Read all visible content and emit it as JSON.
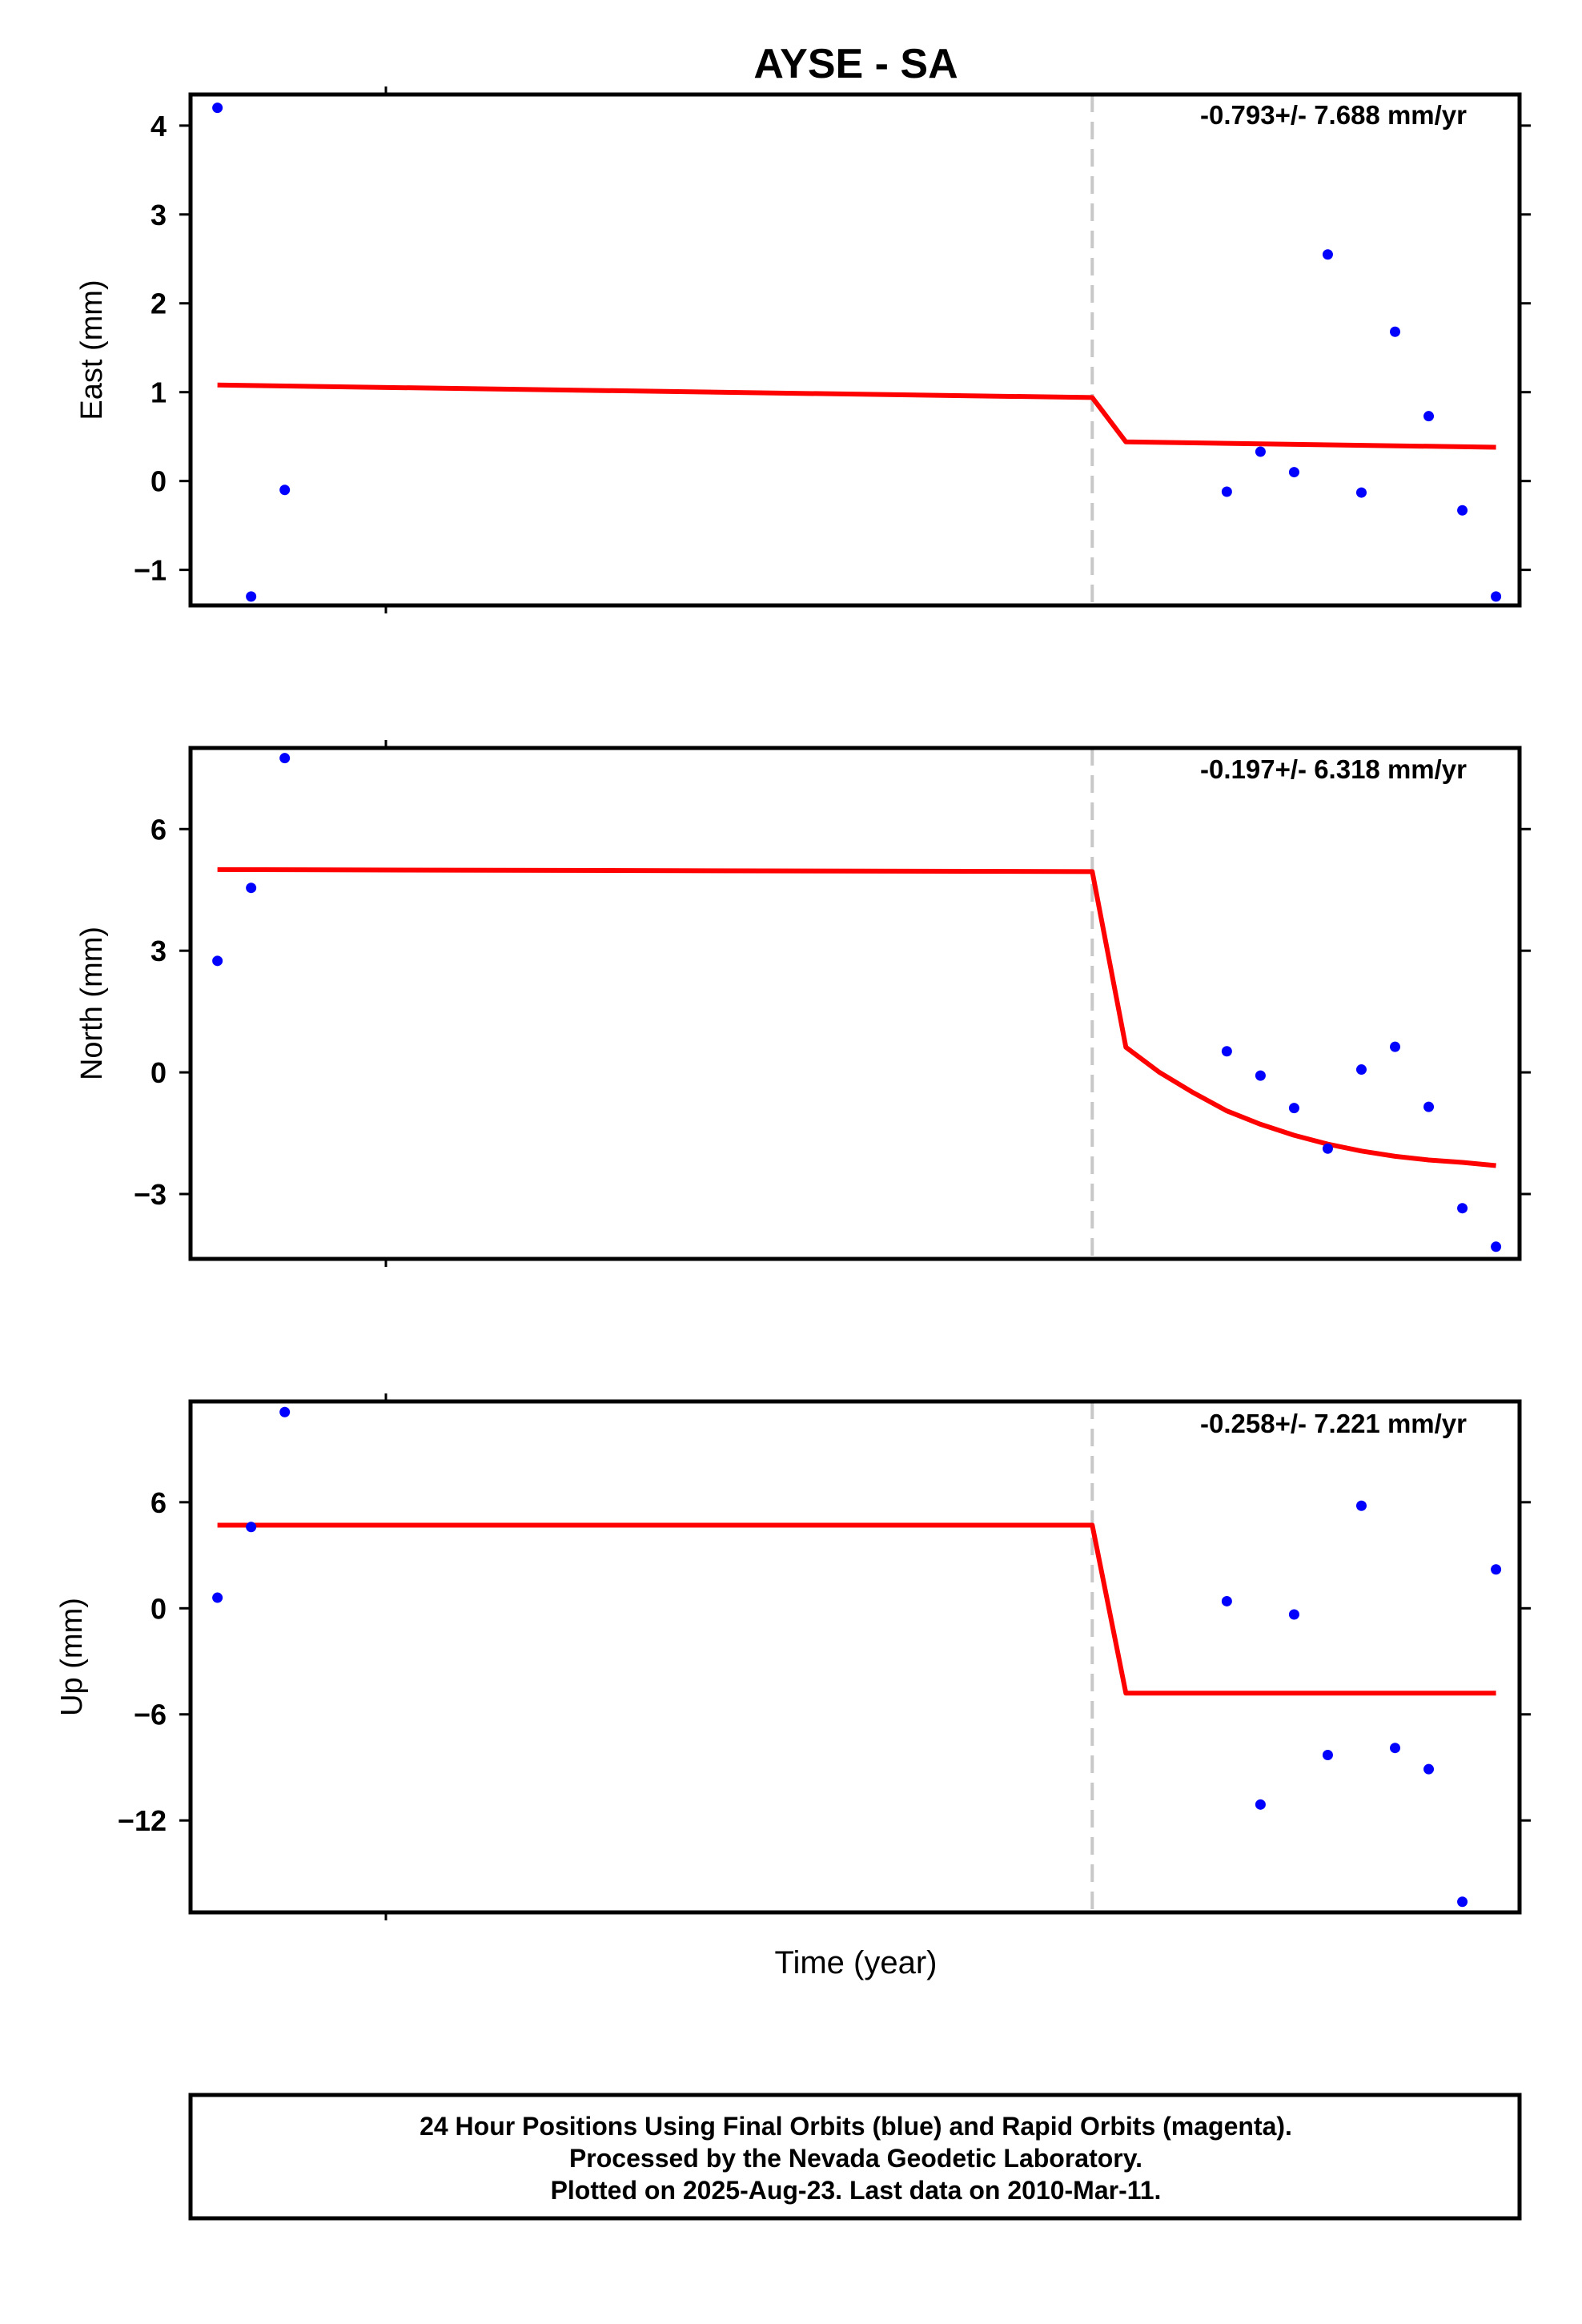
{
  "title": "AYSE - SA",
  "xlabel": "Time (year)",
  "footer": {
    "line1": "24 Hour Positions Using Final Orbits (blue) and Rapid Orbits (magenta).",
    "line2": "Processed by the Nevada Geodetic Laboratory.",
    "line3": "Plotted on 2025-Aug-23. Last data on 2010-Mar-11."
  },
  "colors": {
    "data": "#0000ff",
    "model": "#ff0000",
    "break": "#c8c8c8",
    "frame": "#000000"
  },
  "chart_data": [
    {
      "type": "scatter",
      "ylabel": "East (mm)",
      "rate_label": "-0.793+/- 7.688 mm/yr",
      "ylim": [
        -1.4,
        4.35
      ],
      "yticks": [
        -1,
        0,
        1,
        2,
        3,
        4
      ],
      "ytick_labels": [
        "−1",
        "0",
        "1",
        "2",
        "3",
        "4"
      ],
      "x": [
        0,
        1,
        2,
        30,
        31,
        32,
        33,
        34,
        35,
        36,
        37,
        38
      ],
      "values": [
        4.2,
        -1.3,
        -0.1,
        -0.12,
        0.33,
        0.1,
        2.55,
        -0.13,
        1.68,
        0.73,
        -0.33,
        -1.3
      ],
      "model": {
        "x": [
          0,
          26,
          27,
          38
        ],
        "y": [
          1.08,
          0.94,
          0.44,
          0.38
        ]
      },
      "break_x": 26,
      "xlim": [
        -0.8,
        38.7
      ]
    },
    {
      "type": "scatter",
      "ylabel": "North (mm)",
      "rate_label": "-0.197+/- 6.318 mm/yr",
      "ylim": [
        -4.6,
        8.0
      ],
      "yticks": [
        -3,
        0,
        3,
        6
      ],
      "ytick_labels": [
        "−3",
        "0",
        "3",
        "6"
      ],
      "x": [
        0,
        1,
        2,
        30,
        31,
        32,
        33,
        34,
        35,
        36,
        37,
        38
      ],
      "values": [
        2.75,
        4.55,
        7.75,
        0.52,
        -0.08,
        -0.88,
        -1.88,
        0.07,
        0.63,
        -0.85,
        -3.35,
        -4.3
      ],
      "model": {
        "x": [
          0,
          26,
          27,
          28,
          29,
          30,
          31,
          32,
          33,
          34,
          35,
          36,
          37,
          38
        ],
        "y": [
          5.0,
          4.95,
          0.62,
          0.0,
          -0.5,
          -0.95,
          -1.28,
          -1.55,
          -1.77,
          -1.94,
          -2.07,
          -2.16,
          -2.22,
          -2.3
        ]
      },
      "break_x": 26,
      "xlim": [
        -0.8,
        38.7
      ]
    },
    {
      "type": "scatter",
      "ylabel": "Up (mm)",
      "rate_label": "-0.258+/- 7.221 mm/yr",
      "ylim": [
        -17.2,
        11.7
      ],
      "yticks": [
        -12,
        -6,
        0,
        6
      ],
      "ytick_labels": [
        "−12",
        "−6",
        "0",
        "6"
      ],
      "x": [
        0,
        1,
        2,
        30,
        31,
        32,
        33,
        34,
        35,
        36,
        37,
        38
      ],
      "values": [
        0.6,
        4.6,
        11.1,
        0.4,
        -11.1,
        -0.35,
        -8.3,
        5.8,
        -7.9,
        -9.1,
        -16.6,
        2.2
      ],
      "model": {
        "x": [
          0,
          26,
          27,
          38
        ],
        "y": [
          4.7,
          4.7,
          -4.8,
          -4.8
        ]
      },
      "break_x": 26,
      "xlim": [
        -0.8,
        38.7
      ]
    }
  ]
}
